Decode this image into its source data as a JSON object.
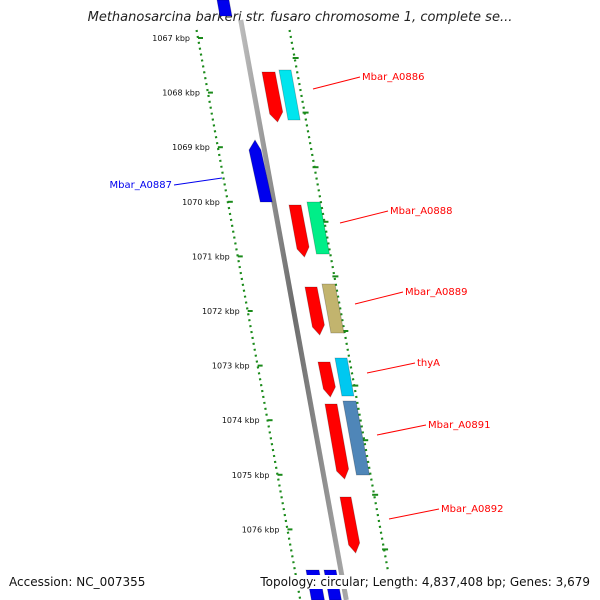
{
  "title": "Methanosarcina barkeri str. fusaro chromosome 1, complete se...",
  "accession": "Accession: NC_007355",
  "topology": "Topology: circular; Length: 4,837,408 bp; Genes: 3,679",
  "colors": {
    "reverse_strand": "#ff0000",
    "forward_strand": "#0000ee",
    "guide_dots": "#1a8a1a",
    "backbone": "#8a8a8a"
  },
  "ticks": [
    "1067 kbp",
    "1068 kbp",
    "1069 kbp",
    "1070 kbp",
    "1071 kbp",
    "1072 kbp",
    "1073 kbp",
    "1074 kbp",
    "1075 kbp",
    "1076 kbp"
  ],
  "genes": [
    {
      "name": "Mbar_A0886",
      "strand": "reverse",
      "color": "#ff0000"
    },
    {
      "name": "Mbar_A0887",
      "strand": "forward",
      "color": "#0000ee"
    },
    {
      "name": "Mbar_A0888",
      "strand": "reverse",
      "color": "#ff0000"
    },
    {
      "name": "Mbar_A0889",
      "strand": "reverse",
      "color": "#ff0000"
    },
    {
      "name": "thyA",
      "strand": "reverse",
      "color": "#ff0000"
    },
    {
      "name": "Mbar_A0891",
      "strand": "reverse",
      "color": "#ff0000"
    },
    {
      "name": "Mbar_A0892",
      "strand": "reverse",
      "color": "#ff0000"
    }
  ],
  "feature_colors": [
    "#00e5ee",
    "#00ee88",
    "#c2b46e",
    "#00c8f0",
    "#4f86b8"
  ]
}
